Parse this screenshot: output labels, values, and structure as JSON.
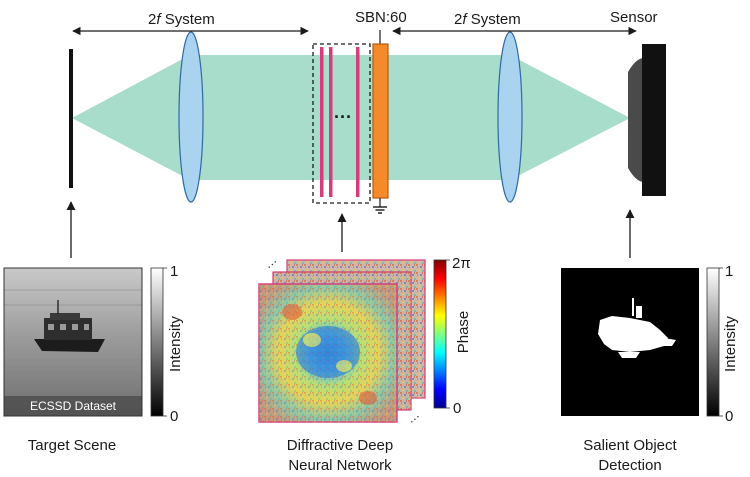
{
  "labels": {
    "system_left": "2f System",
    "system_left_f": "f",
    "system_left_num": "2",
    "system_left_word": "System",
    "system_right_num": "2",
    "system_right_f": "f",
    "system_right_word": "System",
    "crystal": "SBN:60",
    "sensor": "Sensor",
    "ellipsis": "···",
    "target_scene": "Target Scene",
    "d2nn_line1": "Diffractive Deep",
    "d2nn_line2": "Neural Network",
    "sod_line1": "Salient Object",
    "sod_line2": "Detection",
    "dataset": "ECSSD Dataset"
  },
  "colorbars": {
    "intensity_left": {
      "label": "Intensity",
      "max": "1",
      "min": "0"
    },
    "phase": {
      "label": "Phase",
      "max": "2π",
      "min": "0"
    },
    "intensity_right": {
      "label": "Intensity",
      "max": "1",
      "min": "0"
    }
  },
  "colors": {
    "beam": "#a8dccb",
    "lens_fill": "#a9d3ee",
    "lens_stroke": "#2f6aa6",
    "mask": "#d43c7a",
    "crystal_fill": "#f58a2b",
    "crystal_stroke": "#b85a12",
    "sensor_body": "#111111",
    "sensor_face": "#4a4a4a"
  }
}
